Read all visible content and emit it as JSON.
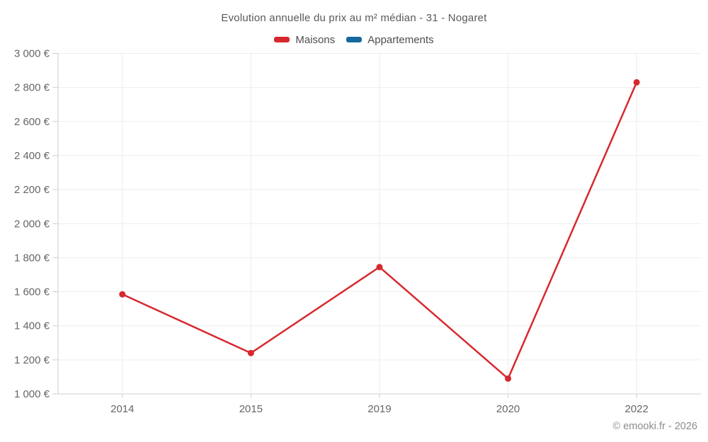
{
  "header": {
    "title": "Evolution annuelle du prix au m² médian - 31 - Nogaret"
  },
  "legend": {
    "items": [
      {
        "label": "Maisons",
        "color": "#d7282f"
      },
      {
        "label": "Appartements",
        "color": "#16699f"
      }
    ]
  },
  "footer": {
    "copyright": "© emooki.fr - 2026"
  },
  "chart_data": {
    "type": "line",
    "title": "Evolution annuelle du prix au m² médian - 31 - Nogaret",
    "categories": [
      "2014",
      "2015",
      "2019",
      "2020",
      "2022"
    ],
    "series": [
      {
        "name": "Maisons",
        "color": "#d7282f",
        "values": [
          1585,
          1240,
          1745,
          1090,
          2830
        ]
      },
      {
        "name": "Appartements",
        "color": "#16699f",
        "values": []
      }
    ],
    "xlabel": "",
    "ylabel": "",
    "ylim": [
      1000,
      3000
    ],
    "ytick_step": 200,
    "ytick_suffix": " €",
    "grid": true,
    "legend_position": "top",
    "colors": {
      "gridline": "#ededed",
      "axis_line": "#cfcfcf",
      "tick_label": "#666666"
    }
  }
}
